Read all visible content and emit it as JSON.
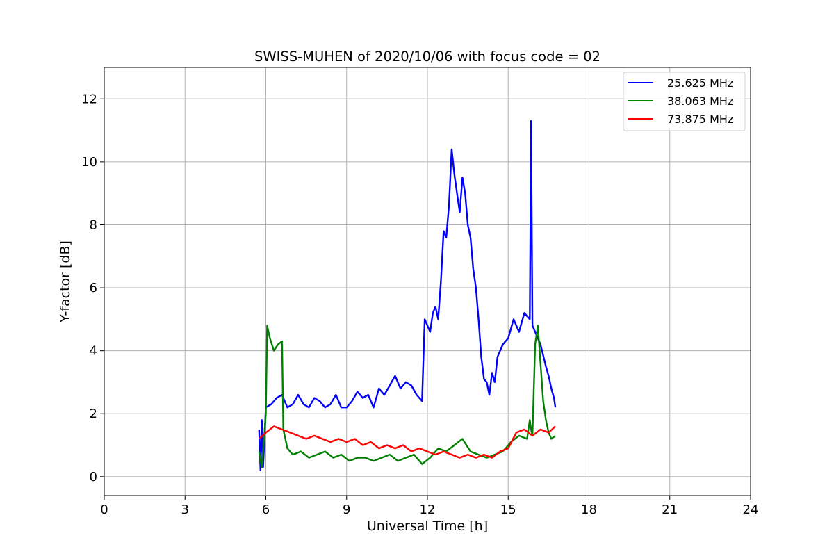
{
  "chart_data": {
    "type": "line",
    "title": "SWISS-MUHEN of 2020/10/06 with focus code = 02",
    "xlabel": "Universal Time [h]",
    "ylabel": "Y-factor [dB]",
    "xlim": [
      0,
      24
    ],
    "ylim": [
      -0.6,
      13.0
    ],
    "xticks": [
      0,
      3,
      6,
      9,
      12,
      15,
      18,
      21,
      24
    ],
    "yticks": [
      0,
      2,
      4,
      6,
      8,
      10,
      12
    ],
    "grid": true,
    "legend_position": "top-right",
    "series": [
      {
        "name": "25.625 MHz",
        "color": "#0000ff",
        "x": [
          5.75,
          5.8,
          5.85,
          5.9,
          6.0,
          6.2,
          6.4,
          6.6,
          6.8,
          7.0,
          7.2,
          7.4,
          7.6,
          7.8,
          8.0,
          8.2,
          8.4,
          8.6,
          8.8,
          9.0,
          9.2,
          9.4,
          9.6,
          9.8,
          10.0,
          10.2,
          10.4,
          10.6,
          10.8,
          11.0,
          11.2,
          11.4,
          11.6,
          11.8,
          11.9,
          12.0,
          12.1,
          12.2,
          12.3,
          12.4,
          12.5,
          12.6,
          12.7,
          12.8,
          12.9,
          13.0,
          13.1,
          13.2,
          13.3,
          13.4,
          13.5,
          13.6,
          13.7,
          13.8,
          13.9,
          14.0,
          14.1,
          14.2,
          14.3,
          14.4,
          14.5,
          14.6,
          14.8,
          15.0,
          15.2,
          15.4,
          15.6,
          15.8,
          15.85,
          15.9,
          16.0,
          16.2,
          16.4,
          16.5,
          16.6,
          16.7,
          16.75
        ],
        "y": [
          1.5,
          0.2,
          1.8,
          0.3,
          2.2,
          2.3,
          2.5,
          2.6,
          2.2,
          2.3,
          2.6,
          2.3,
          2.2,
          2.5,
          2.4,
          2.2,
          2.3,
          2.6,
          2.2,
          2.2,
          2.4,
          2.7,
          2.5,
          2.6,
          2.2,
          2.8,
          2.6,
          2.9,
          3.2,
          2.8,
          3.0,
          2.9,
          2.6,
          2.4,
          5.0,
          4.8,
          4.6,
          5.2,
          5.4,
          5.0,
          6.2,
          7.8,
          7.6,
          8.6,
          10.4,
          9.6,
          9.0,
          8.4,
          9.5,
          9.0,
          8.0,
          7.6,
          6.6,
          6.0,
          5.0,
          3.8,
          3.1,
          3.0,
          2.6,
          3.3,
          3.0,
          3.8,
          4.2,
          4.4,
          5.0,
          4.6,
          5.2,
          5.0,
          11.3,
          4.8,
          4.6,
          4.2,
          3.5,
          3.2,
          2.8,
          2.5,
          2.2
        ]
      },
      {
        "name": "38.063 MHz",
        "color": "#008000",
        "x": [
          5.75,
          5.85,
          5.95,
          6.0,
          6.05,
          6.15,
          6.3,
          6.45,
          6.6,
          6.65,
          6.8,
          7.0,
          7.3,
          7.6,
          7.9,
          8.2,
          8.5,
          8.8,
          9.1,
          9.4,
          9.7,
          10.0,
          10.3,
          10.6,
          10.9,
          11.2,
          11.5,
          11.8,
          12.1,
          12.4,
          12.7,
          13.0,
          13.3,
          13.6,
          13.9,
          14.2,
          14.5,
          14.8,
          15.1,
          15.4,
          15.7,
          15.8,
          15.85,
          15.9,
          16.0,
          16.1,
          16.2,
          16.3,
          16.4,
          16.5,
          16.6,
          16.75
        ],
        "y": [
          0.8,
          0.3,
          1.4,
          2.0,
          4.8,
          4.4,
          4.0,
          4.2,
          4.3,
          1.5,
          0.9,
          0.7,
          0.8,
          0.6,
          0.7,
          0.8,
          0.6,
          0.7,
          0.5,
          0.6,
          0.6,
          0.5,
          0.6,
          0.7,
          0.5,
          0.6,
          0.7,
          0.4,
          0.6,
          0.9,
          0.8,
          1.0,
          1.2,
          0.8,
          0.7,
          0.6,
          0.7,
          0.8,
          1.1,
          1.3,
          1.2,
          1.8,
          1.5,
          1.3,
          4.2,
          4.8,
          3.6,
          2.4,
          1.8,
          1.4,
          1.2,
          1.3
        ]
      },
      {
        "name": "73.875 MHz",
        "color": "#ff0000",
        "x": [
          5.75,
          6.0,
          6.3,
          6.6,
          6.9,
          7.2,
          7.5,
          7.8,
          8.1,
          8.4,
          8.7,
          9.0,
          9.3,
          9.6,
          9.9,
          10.2,
          10.5,
          10.8,
          11.1,
          11.4,
          11.7,
          12.0,
          12.3,
          12.6,
          12.9,
          13.2,
          13.5,
          13.8,
          14.1,
          14.4,
          14.7,
          15.0,
          15.3,
          15.6,
          15.9,
          16.2,
          16.5,
          16.75
        ],
        "y": [
          1.2,
          1.4,
          1.6,
          1.5,
          1.4,
          1.3,
          1.2,
          1.3,
          1.2,
          1.1,
          1.2,
          1.1,
          1.2,
          1.0,
          1.1,
          0.9,
          1.0,
          0.9,
          1.0,
          0.8,
          0.9,
          0.8,
          0.7,
          0.8,
          0.7,
          0.6,
          0.7,
          0.6,
          0.7,
          0.6,
          0.8,
          0.9,
          1.4,
          1.5,
          1.3,
          1.5,
          1.4,
          1.6
        ]
      }
    ]
  }
}
